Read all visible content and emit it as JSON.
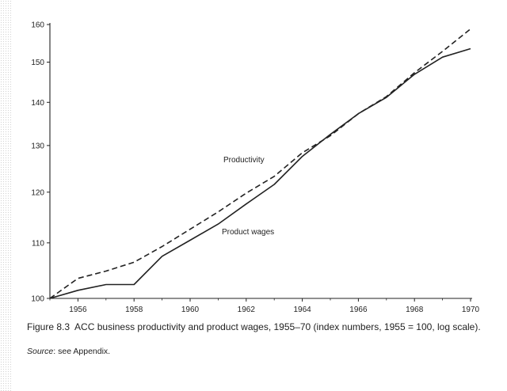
{
  "chart_data": {
    "type": "line",
    "title": "",
    "xlabel": "",
    "ylabel": "",
    "scale": "log",
    "x": [
      1955,
      1956,
      1957,
      1958,
      1959,
      1960,
      1961,
      1962,
      1963,
      1964,
      1965,
      1966,
      1967,
      1968,
      1969,
      1970
    ],
    "xticks": [
      "1956",
      "1958",
      "1960",
      "1962",
      "1964",
      "1966",
      "1968",
      "1970"
    ],
    "xlim": [
      1955,
      1970
    ],
    "yticks": [
      "100",
      "110",
      "120",
      "130",
      "140",
      "150",
      "160"
    ],
    "ylim": [
      100,
      160
    ],
    "grid": false,
    "legend": "none",
    "series": [
      {
        "name": "Productivity",
        "style": "dashed",
        "color": "#222222",
        "values": [
          100,
          103.5,
          104.8,
          106.4,
          109.3,
          112.6,
          116.0,
          119.8,
          123.3,
          128.4,
          132.2,
          137.3,
          141.4,
          147.3,
          152.8,
          158.8
        ]
      },
      {
        "name": "Product wages",
        "style": "solid",
        "color": "#222222",
        "values": [
          100,
          101.4,
          102.4,
          102.4,
          107.5,
          110.5,
          113.6,
          117.6,
          121.6,
          127.6,
          132.5,
          137.3,
          141.2,
          146.9,
          151.3,
          153.5
        ]
      }
    ]
  },
  "caption": {
    "label": "Figure 8.3",
    "text": "ACC business productivity and product wages, 1955–70 (index numbers, 1955 = 100, log scale).",
    "source_label": "Source",
    "source_text": ": see Appendix."
  }
}
